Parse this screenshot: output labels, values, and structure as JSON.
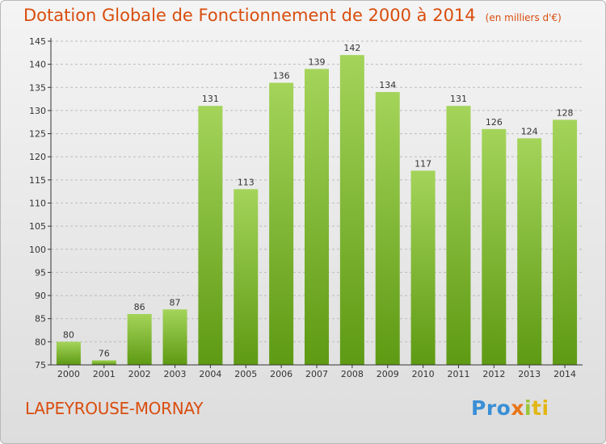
{
  "header": {
    "title": "Dotation Globale de Fonctionnement de 2000 à 2014",
    "subtitle": "(en milliers d'€)"
  },
  "footer": {
    "commune": "LAPEYROUSE-MORNAY",
    "logo_text": "Proxiti",
    "logo_parts": [
      "Pro",
      "x",
      "i",
      "ti"
    ]
  },
  "colors": {
    "title": "#d94d0e",
    "bar_top": "#a4d45a",
    "bar_bottom": "#5e9a13",
    "axis": "#333333",
    "grid": "#bcbcbc"
  },
  "chart_data": {
    "type": "bar",
    "categories": [
      "2000",
      "2001",
      "2002",
      "2003",
      "2004",
      "2005",
      "2006",
      "2007",
      "2008",
      "2009",
      "2010",
      "2011",
      "2012",
      "2013",
      "2014"
    ],
    "values": [
      80,
      76,
      86,
      87,
      131,
      113,
      136,
      139,
      142,
      134,
      117,
      131,
      126,
      124,
      128
    ],
    "ylim": [
      75,
      145
    ],
    "yticks": [
      75,
      80,
      85,
      90,
      95,
      100,
      105,
      110,
      115,
      120,
      125,
      130,
      135,
      140,
      145
    ],
    "title": "Dotation Globale de Fonctionnement de 2000 à 2014",
    "subtitle": "(en milliers d'€)",
    "xlabel": "",
    "ylabel": "",
    "grid": true,
    "data_labels": true
  }
}
